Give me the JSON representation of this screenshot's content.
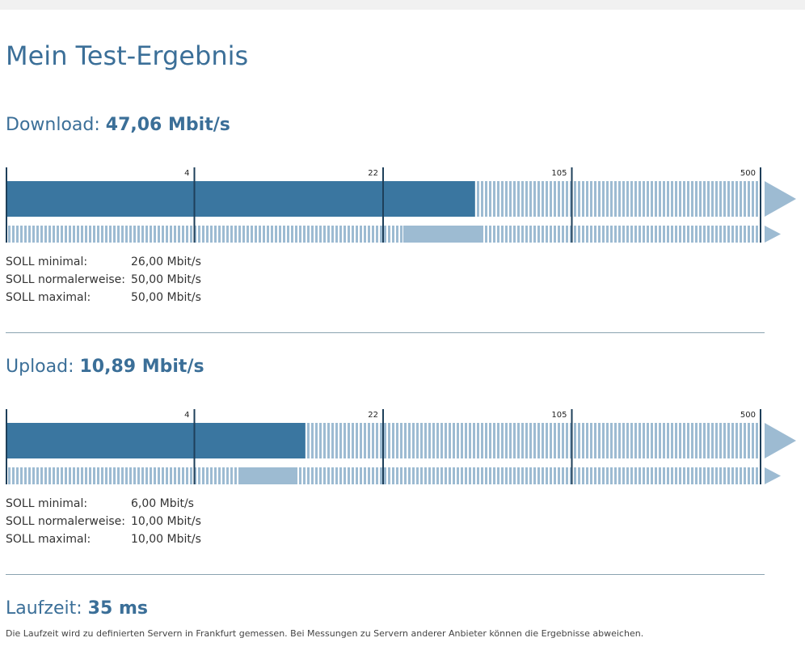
{
  "title": "Mein Test-Ergebnis",
  "scale": {
    "lim": [
      0,
      500
    ],
    "ticks": [
      4,
      22,
      105,
      500
    ]
  },
  "sections": [
    {
      "label": "Download:",
      "value": 47.06,
      "value_label": "47,06 Mbit/s",
      "soll": [
        {
          "label": "SOLL minimal:",
          "value": 26,
          "value_label": "26,00 Mbit/s"
        },
        {
          "label": "SOLL normalerweise:",
          "value": 50,
          "value_label": "50,00 Mbit/s"
        },
        {
          "label": "SOLL maximal:",
          "value": 50,
          "value_label": "50,00 Mbit/s"
        }
      ]
    },
    {
      "label": "Upload:",
      "value": 10.89,
      "value_label": "10,89 Mbit/s",
      "soll": [
        {
          "label": "SOLL minimal:",
          "value": 6,
          "value_label": "6,00 Mbit/s"
        },
        {
          "label": "SOLL normalerweise:",
          "value": 10,
          "value_label": "10,00 Mbit/s"
        },
        {
          "label": "SOLL maximal:",
          "value": 10,
          "value_label": "10,00 Mbit/s"
        }
      ]
    }
  ],
  "latency": {
    "label": "Laufzeit:",
    "value_label": "35 ms",
    "note": "Die Laufzeit wird zu definierten Servern in Frankfurt gemessen. Bei Messungen zu Servern anderer Anbieter können die Ergebnisse abweichen."
  }
}
